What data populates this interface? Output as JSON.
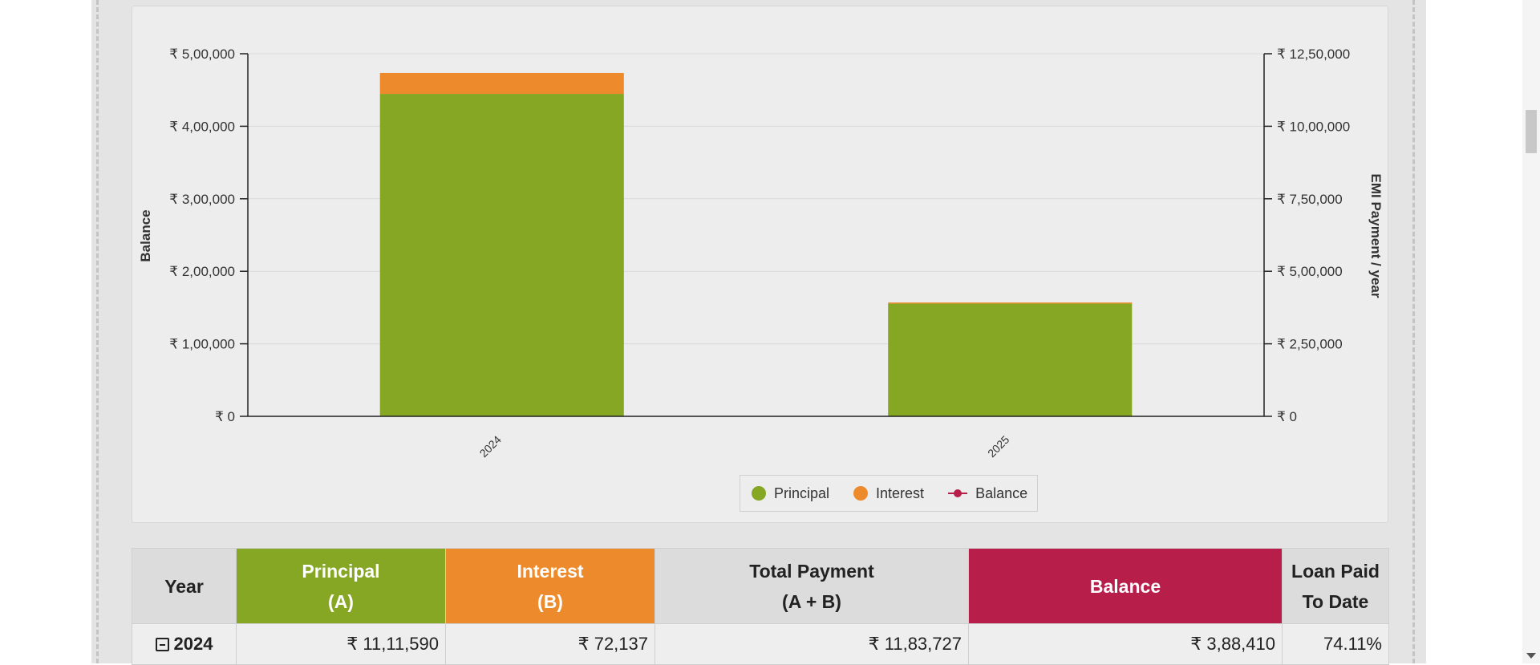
{
  "chart_data": {
    "type": "bar",
    "stacked": true,
    "categories": [
      "2024",
      "2025"
    ],
    "series": [
      {
        "name": "Principal",
        "axis": "right",
        "color": "#86a723",
        "values": [
          1111590,
          388410
        ]
      },
      {
        "name": "Interest",
        "axis": "right",
        "color": "#ed8b2c",
        "values": [
          72137,
          4000
        ]
      },
      {
        "name": "Balance",
        "axis": "left",
        "type": "line",
        "color": "#b71f4a",
        "values": [
          388410,
          0
        ]
      }
    ],
    "yaxis_left": {
      "title": "Balance",
      "range": [
        0,
        500000
      ],
      "ticks": [
        0,
        100000,
        200000,
        300000,
        400000,
        500000
      ],
      "tick_labels": [
        "₹ 0",
        "₹ 1,00,000",
        "₹ 2,00,000",
        "₹ 3,00,000",
        "₹ 4,00,000",
        "₹ 5,00,000"
      ]
    },
    "yaxis_right": {
      "title": "EMI Payment / year",
      "range": [
        0,
        1250000
      ],
      "ticks": [
        0,
        250000,
        500000,
        750000,
        1000000,
        1250000
      ],
      "tick_labels": [
        "₹ 0",
        "₹ 2,50,000",
        "₹ 5,00,000",
        "₹ 7,50,000",
        "₹ 10,00,000",
        "₹ 12,50,000"
      ]
    },
    "grid": true,
    "legend_position": "bottom-center"
  },
  "legend": {
    "principal": "Principal",
    "interest": "Interest",
    "balance": "Balance"
  },
  "table": {
    "headers": {
      "year": "Year",
      "principal_line1": "Principal",
      "principal_line2": "(A)",
      "interest_line1": "Interest",
      "interest_line2": "(B)",
      "total_line1": "Total Payment",
      "total_line2": "(A + B)",
      "balance": "Balance",
      "paid_line1": "Loan Paid",
      "paid_line2": "To Date"
    },
    "rows": [
      {
        "year": "2024",
        "principal": "₹ 11,11,590",
        "interest": "₹ 72,137",
        "total": "₹ 11,83,727",
        "balance": "₹ 3,88,410",
        "paid": "74.11%"
      }
    ]
  },
  "colors": {
    "principal": "#86a723",
    "interest": "#ed8b2c",
    "balance": "#b71f4a"
  }
}
